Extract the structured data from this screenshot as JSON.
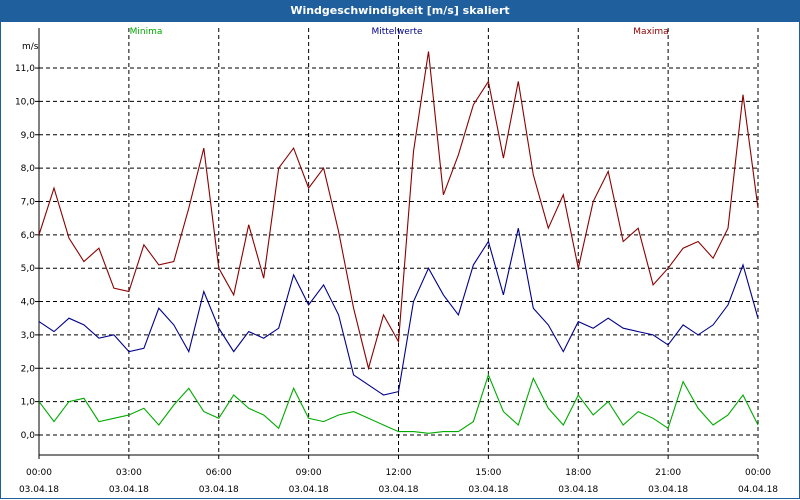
{
  "window": {
    "title": "Windgeschwindigkeit [m/s] skaliert"
  },
  "chart_data": {
    "type": "line",
    "title": "Windgeschwindigkeit [m/s] skaliert",
    "ylabel": "m/s",
    "ylim": [
      -0.6,
      12.2
    ],
    "yticks": [
      "0,0",
      "1,0",
      "2,0",
      "3,0",
      "4,0",
      "5,0",
      "6,0",
      "7,0",
      "8,0",
      "9,0",
      "10,0",
      "11,0"
    ],
    "xlim_hours": [
      0,
      24
    ],
    "xticks": [
      {
        "time": "00:00",
        "date": "03.04.18"
      },
      {
        "time": "03:00",
        "date": "03.04.18"
      },
      {
        "time": "06:00",
        "date": "03.04.18"
      },
      {
        "time": "09:00",
        "date": "03.04.18"
      },
      {
        "time": "12:00",
        "date": "03.04.18"
      },
      {
        "time": "15:00",
        "date": "03.04.18"
      },
      {
        "time": "18:00",
        "date": "03.04.18"
      },
      {
        "time": "21:00",
        "date": "03.04.18"
      },
      {
        "time": "00:00",
        "date": "04.04.18"
      }
    ],
    "grid": true,
    "legend_position": "top",
    "x_hours": [
      0,
      0.5,
      1,
      1.5,
      2,
      2.5,
      3,
      3.5,
      4,
      4.5,
      5,
      5.5,
      6,
      6.5,
      7,
      7.5,
      8,
      8.5,
      9,
      9.5,
      10,
      10.5,
      11,
      11.5,
      12,
      12.5,
      13,
      13.5,
      14,
      14.5,
      15,
      15.5,
      16,
      16.5,
      17,
      17.5,
      18,
      18.5,
      19,
      19.5,
      20,
      20.5,
      21,
      21.5,
      22,
      22.5,
      23,
      23.5,
      24
    ],
    "series": [
      {
        "name": "Minima",
        "color": "#00aa00",
        "values": [
          1.0,
          0.4,
          1.0,
          1.1,
          0.4,
          0.5,
          0.6,
          0.8,
          0.3,
          0.9,
          1.4,
          0.7,
          0.5,
          1.2,
          0.8,
          0.6,
          0.2,
          1.4,
          0.5,
          0.4,
          0.6,
          0.7,
          0.5,
          0.3,
          0.1,
          0.1,
          0.05,
          0.1,
          0.1,
          0.4,
          1.8,
          0.7,
          0.3,
          1.7,
          0.8,
          0.3,
          1.2,
          0.6,
          1.0,
          0.3,
          0.7,
          0.5,
          0.2,
          1.6,
          0.8,
          0.3,
          0.6,
          1.2,
          0.3
        ]
      },
      {
        "name": "Mittelwerte",
        "color": "#00008b",
        "values": [
          3.4,
          3.1,
          3.5,
          3.3,
          2.9,
          3.0,
          2.5,
          2.6,
          3.8,
          3.3,
          2.5,
          4.3,
          3.2,
          2.5,
          3.1,
          2.9,
          3.2,
          4.8,
          3.9,
          4.5,
          3.6,
          1.8,
          1.5,
          1.2,
          1.3,
          4.0,
          5.0,
          4.2,
          3.6,
          5.1,
          5.8,
          4.2,
          6.2,
          3.8,
          3.3,
          2.5,
          3.4,
          3.2,
          3.5,
          3.2,
          3.1,
          3.0,
          2.7,
          3.3,
          3.0,
          3.3,
          3.9,
          5.1,
          3.5
        ]
      },
      {
        "name": "Maxima",
        "color": "#8b0000",
        "values": [
          6.0,
          7.4,
          5.9,
          5.2,
          5.6,
          4.4,
          4.3,
          5.7,
          5.1,
          5.2,
          6.8,
          8.6,
          5.0,
          4.2,
          6.3,
          4.7,
          8.0,
          8.6,
          7.4,
          8.0,
          6.1,
          3.8,
          2.0,
          3.6,
          2.8,
          8.5,
          11.5,
          7.2,
          8.4,
          9.9,
          10.6,
          8.3,
          10.6,
          7.8,
          6.2,
          7.2,
          5.0,
          7.0,
          7.9,
          5.8,
          6.2,
          4.5,
          5.0,
          5.6,
          5.8,
          5.3,
          6.2,
          10.2,
          6.8
        ]
      }
    ]
  }
}
